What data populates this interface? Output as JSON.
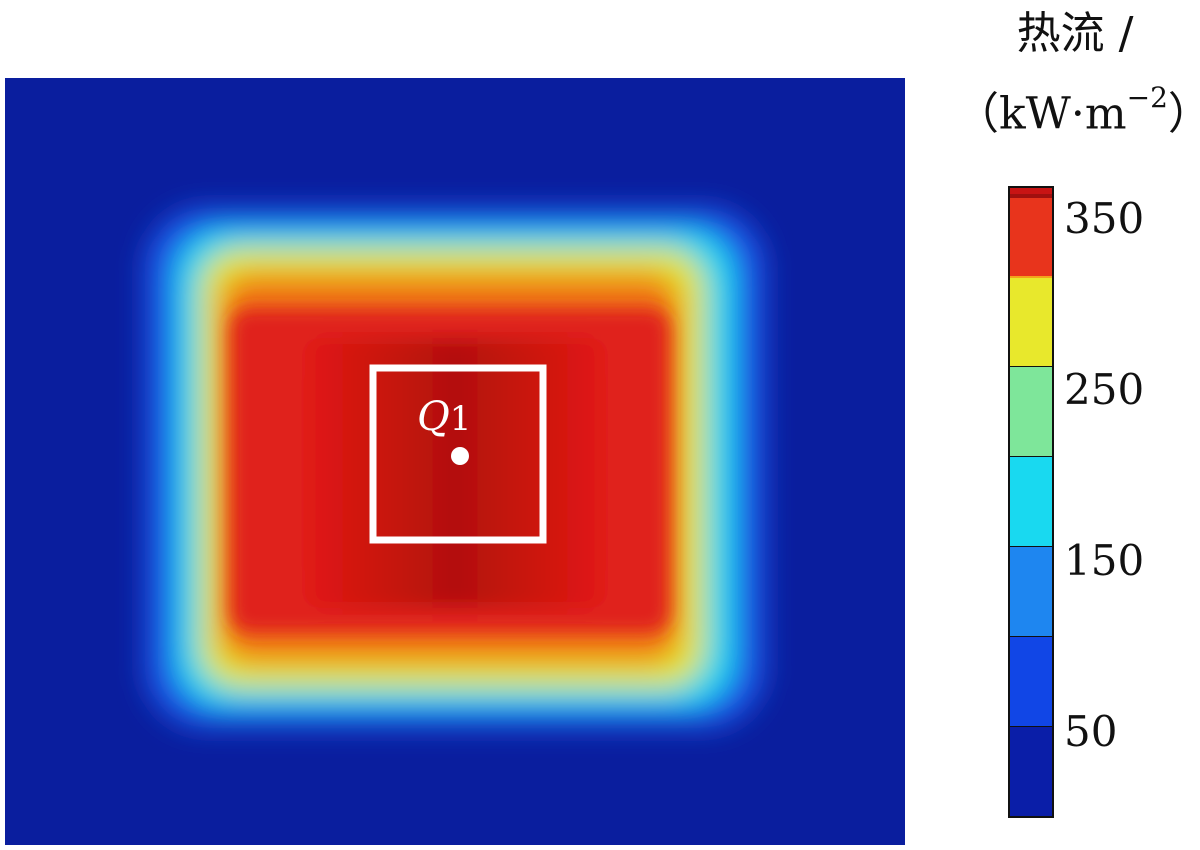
{
  "legend": {
    "title": "热流 /",
    "unit_base": "（kW·m",
    "unit_exp": "−2",
    "unit_close": "）",
    "colors": [
      "#0a1ea8",
      "#1146e6",
      "#1e86f0",
      "#19d9f0",
      "#7ee69a",
      "#e8e82c",
      "#f5a21c",
      "#e8341c",
      "#c81814",
      "#a0100f",
      "#c81414"
    ],
    "ticks": [
      {
        "label": "350",
        "value": 350
      },
      {
        "label": "250",
        "value": 250
      },
      {
        "label": "150",
        "value": 150
      },
      {
        "label": "50",
        "value": 50
      }
    ],
    "range": [
      0,
      370
    ]
  },
  "annotation": {
    "label": "Q1",
    "label_main": "Q",
    "label_sub": "1"
  },
  "chart_data": {
    "type": "heatmap",
    "title": "",
    "xlabel": "",
    "ylabel": "",
    "colorbar_label": "热流 /（kW·m−2）",
    "value_range": [
      0,
      370
    ],
    "colorbar_ticks": [
      50,
      150,
      250,
      350
    ],
    "description_values": {
      "background": 10,
      "outer_ring": 130,
      "middle_ring": 220,
      "inner_region": 300,
      "center_peak": 350
    },
    "annotation": {
      "label": "Q1",
      "marker": "point with square window around it"
    }
  }
}
